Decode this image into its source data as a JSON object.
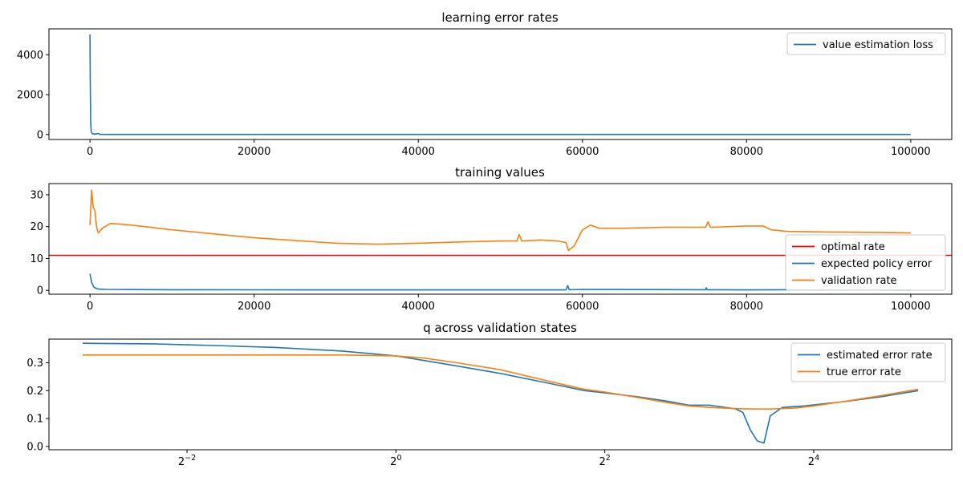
{
  "chart_data": [
    {
      "type": "line",
      "title": "learning error rates",
      "xlabel": "",
      "ylabel": "",
      "xlim": [
        -5000,
        105000
      ],
      "ylim": [
        -250,
        5300
      ],
      "x_ticks": [
        0,
        20000,
        40000,
        60000,
        80000,
        100000
      ],
      "x_tick_labels": [
        "0",
        "20000",
        "40000",
        "60000",
        "80000",
        "100000"
      ],
      "y_ticks": [
        0,
        2000,
        4000
      ],
      "y_tick_labels": [
        "0",
        "2000",
        "4000"
      ],
      "grid": false,
      "legend": "top-right",
      "series": [
        {
          "name": "value estimation loss",
          "color": "#1f77b4",
          "x": [
            0,
            30,
            80,
            150,
            300,
            600,
            1000,
            1200,
            2000,
            5000,
            10000,
            20000,
            40000,
            60000,
            80000,
            100000
          ],
          "y": [
            5020,
            3000,
            600,
            120,
            40,
            20,
            50,
            8,
            5,
            3,
            3,
            2,
            2,
            2,
            2,
            2
          ]
        }
      ]
    },
    {
      "type": "line",
      "title": "training values",
      "xlabel": "",
      "ylabel": "",
      "xlim": [
        -5000,
        105000
      ],
      "ylim": [
        -1.2,
        33.5
      ],
      "x_ticks": [
        0,
        20000,
        40000,
        60000,
        80000,
        100000
      ],
      "x_tick_labels": [
        "0",
        "20000",
        "40000",
        "60000",
        "80000",
        "100000"
      ],
      "y_ticks": [
        0,
        10,
        20,
        30
      ],
      "y_tick_labels": [
        "0",
        "10",
        "20",
        "30"
      ],
      "grid": false,
      "legend": "lower-right",
      "series": [
        {
          "name": "optimal rate",
          "color": "#ff0000",
          "x": [
            -5000,
            105000
          ],
          "y": [
            11,
            11
          ]
        },
        {
          "name": "expected policy error",
          "color": "#1f77b4",
          "x": [
            0,
            200,
            500,
            1000,
            2000,
            5000,
            10000,
            20000,
            40000,
            58000,
            58200,
            58400,
            60000,
            75000,
            75100,
            75200,
            80000,
            85000,
            100000
          ],
          "y": [
            5.2,
            2.5,
            0.9,
            0.4,
            0.3,
            0.25,
            0.2,
            0.18,
            0.15,
            0.15,
            1.5,
            0.2,
            0.3,
            0.2,
            0.8,
            0.2,
            0.15,
            0.2,
            0.1
          ]
        },
        {
          "name": "validation rate",
          "color": "#ff7f0e",
          "x": [
            0,
            200,
            400,
            600,
            800,
            1000,
            1500,
            2500,
            5000,
            10000,
            20000,
            30000,
            35000,
            40000,
            45000,
            50000,
            52000,
            52300,
            52600,
            55000,
            57000,
            58000,
            58300,
            59000,
            60000,
            61000,
            62000,
            65000,
            70000,
            75000,
            75300,
            75600,
            80000,
            82000,
            83000,
            85000,
            90000,
            95000,
            100000
          ],
          "y": [
            20.5,
            31.5,
            26,
            25,
            20,
            18,
            19.5,
            21,
            20.5,
            19,
            16.5,
            14.8,
            14.5,
            14.8,
            15.2,
            15.5,
            15.5,
            17.5,
            15.5,
            15.8,
            15.5,
            15,
            12.5,
            14,
            19,
            20.5,
            19.5,
            19.5,
            19.8,
            19.8,
            21.5,
            19.8,
            20.2,
            20.2,
            19,
            18.5,
            18.3,
            18.2,
            18
          ]
        }
      ]
    },
    {
      "type": "line",
      "title": "q across validation states",
      "xlabel": "",
      "ylabel": "",
      "x_scale": "log2",
      "xlim": [
        0.1,
        40
      ],
      "ylim": [
        -0.012,
        0.385
      ],
      "x_ticks": [
        0.25,
        1,
        4,
        16
      ],
      "x_tick_labels": [
        {
          "base": "2",
          "exp": "−2"
        },
        {
          "base": "2",
          "exp": "0"
        },
        {
          "base": "2",
          "exp": "2"
        },
        {
          "base": "2",
          "exp": "4"
        }
      ],
      "y_ticks": [
        0,
        0.1,
        0.2,
        0.3
      ],
      "y_tick_labels": [
        "0.0",
        "0.1",
        "0.2",
        "0.3"
      ],
      "grid": false,
      "legend": "top-right",
      "series": [
        {
          "name": "estimated error rate",
          "color": "#1f77b4",
          "x": [
            0.125,
            0.2,
            0.3,
            0.45,
            0.7,
            1.0,
            1.4,
            2.0,
            2.8,
            3.5,
            4.0,
            5.0,
            6.0,
            7.0,
            8.0,
            9.5,
            10.0,
            10.5,
            11.0,
            11.5,
            12.0,
            13.0,
            15.0,
            20.0,
            25.0,
            32.0
          ],
          "y": [
            0.37,
            0.368,
            0.362,
            0.355,
            0.342,
            0.325,
            0.295,
            0.262,
            0.225,
            0.2,
            0.192,
            0.178,
            0.163,
            0.148,
            0.148,
            0.135,
            0.122,
            0.06,
            0.02,
            0.012,
            0.11,
            0.14,
            0.145,
            0.162,
            0.178,
            0.2
          ]
        },
        {
          "name": "true error rate",
          "color": "#ff7f0e",
          "x": [
            0.125,
            0.2,
            0.3,
            0.45,
            0.7,
            1.0,
            1.2,
            1.5,
            2.0,
            2.8,
            3.5,
            4.0,
            5.0,
            6.0,
            7.0,
            8.0,
            9.0,
            10.0,
            11.0,
            12.0,
            14.0,
            16.0,
            20.0,
            25.0,
            32.0
          ],
          "y": [
            0.328,
            0.328,
            0.328,
            0.328,
            0.328,
            0.325,
            0.317,
            0.3,
            0.275,
            0.232,
            0.205,
            0.195,
            0.175,
            0.158,
            0.145,
            0.14,
            0.137,
            0.135,
            0.134,
            0.134,
            0.137,
            0.145,
            0.163,
            0.182,
            0.205
          ]
        }
      ]
    }
  ]
}
